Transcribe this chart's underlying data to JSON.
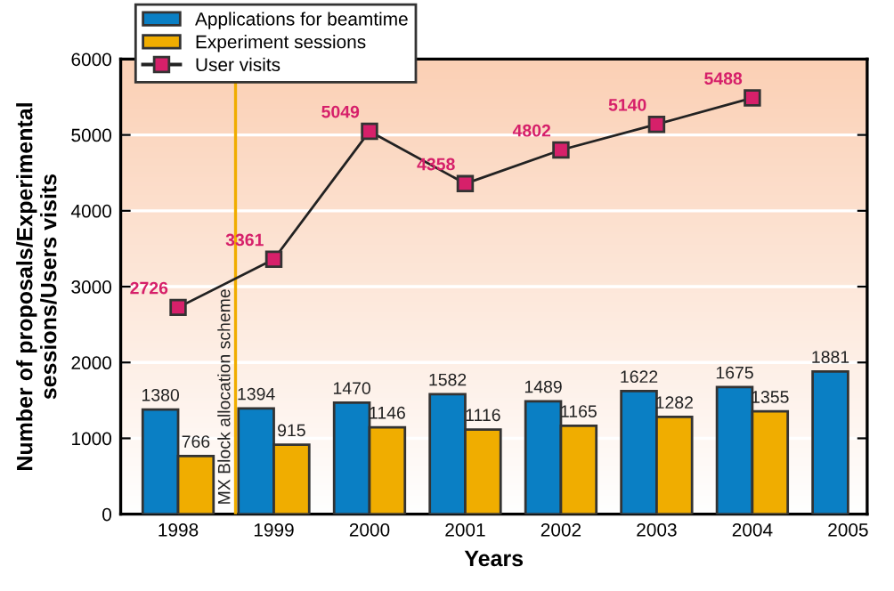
{
  "chart_data": {
    "type": "bar",
    "xlabel": "Years",
    "ylabel": "Number of proposals/Experimental\nsessions/Users visits",
    "x": [
      1998,
      1999,
      2000,
      2001,
      2002,
      2003,
      2004,
      2005
    ],
    "series": [
      {
        "name": "Applications for beamtime",
        "color": "#0a7fc4",
        "values": [
          1380,
          1394,
          1470,
          1582,
          1489,
          1622,
          1675,
          1881
        ]
      },
      {
        "name": "Experiment sessions",
        "color": "#f0ad00",
        "values": [
          766,
          915,
          1146,
          1116,
          1165,
          1282,
          1355,
          null
        ]
      },
      {
        "name": "User visits",
        "type": "line",
        "color": "#d6206a",
        "values": [
          2726,
          3361,
          5049,
          4358,
          4802,
          5140,
          5488,
          null
        ]
      }
    ],
    "data_labels": true,
    "xlim": [
      1997.4,
      2005.2
    ],
    "xticks": [
      1998,
      1999,
      2000,
      2001,
      2002,
      2003,
      2004,
      2005
    ],
    "ylim": [
      0,
      6000
    ],
    "yticks": [
      0,
      1000,
      2000,
      3000,
      4000,
      5000,
      6000
    ],
    "ref_lines": [
      {
        "axis": "x",
        "value": 1998.6,
        "label": "MX Block allocation scheme",
        "color": "#f0ad00"
      }
    ],
    "grid": "y",
    "legend": "top left",
    "marker": "square"
  }
}
